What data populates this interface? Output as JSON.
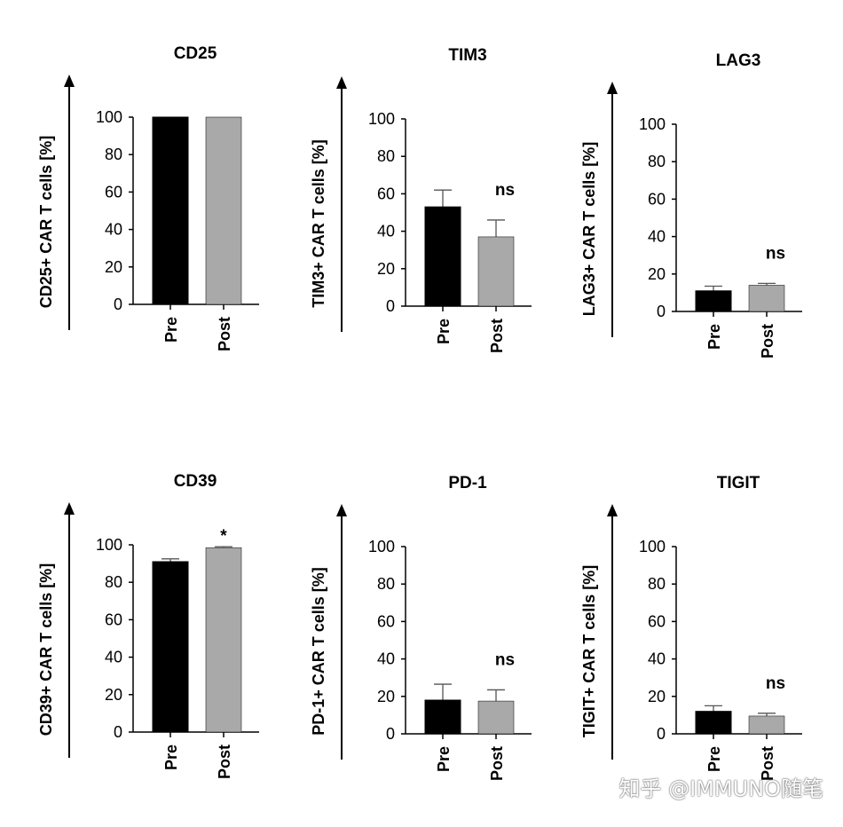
{
  "chart_data": [
    {
      "type": "bar",
      "title": "CD25",
      "ylabel": "CD25+ CAR T cells  [%]",
      "categories": [
        "Pre",
        "Post"
      ],
      "values": [
        100,
        100
      ],
      "error_upper": [
        100,
        100
      ],
      "significance": "",
      "ylim": [
        0,
        100
      ],
      "yticks": [
        0,
        20,
        40,
        60,
        80,
        100
      ],
      "colors": [
        "#000000",
        "#a9a9a9"
      ]
    },
    {
      "type": "bar",
      "title": "TIM3",
      "ylabel": "TIM3+ CAR T cells  [%]",
      "categories": [
        "Pre",
        "Post"
      ],
      "values": [
        53,
        37
      ],
      "error_upper": [
        62,
        46
      ],
      "significance": "ns",
      "ylim": [
        0,
        100
      ],
      "yticks": [
        0,
        20,
        40,
        60,
        80,
        100
      ],
      "colors": [
        "#000000",
        "#a9a9a9"
      ]
    },
    {
      "type": "bar",
      "title": "LAG3",
      "ylabel": "LAG3+ CAR T cells  [%]",
      "categories": [
        "Pre",
        "Post"
      ],
      "values": [
        11,
        14
      ],
      "error_upper": [
        13.5,
        15
      ],
      "significance": "ns",
      "ylim": [
        0,
        100
      ],
      "yticks": [
        0,
        20,
        40,
        60,
        80,
        100
      ],
      "colors": [
        "#000000",
        "#a9a9a9"
      ]
    },
    {
      "type": "bar",
      "title": "CD39",
      "ylabel": "CD39+ CAR T cells  [%]",
      "categories": [
        "Pre",
        "Post"
      ],
      "values": [
        91,
        98.5
      ],
      "error_upper": [
        92.5,
        99
      ],
      "significance": "*",
      "ylim": [
        0,
        100
      ],
      "yticks": [
        0,
        20,
        40,
        60,
        80,
        100
      ],
      "colors": [
        "#000000",
        "#a9a9a9"
      ]
    },
    {
      "type": "bar",
      "title": "PD-1",
      "ylabel": "PD-1+ CAR T cells  [%]",
      "categories": [
        "Pre",
        "Post"
      ],
      "values": [
        18,
        17.5
      ],
      "error_upper": [
        26.5,
        23.5
      ],
      "significance": "ns",
      "ylim": [
        0,
        100
      ],
      "yticks": [
        0,
        20,
        40,
        60,
        80,
        100
      ],
      "colors": [
        "#000000",
        "#a9a9a9"
      ]
    },
    {
      "type": "bar",
      "title": "TIGIT",
      "ylabel": "TIGIT+ CAR T cells  [%]",
      "categories": [
        "Pre",
        "Post"
      ],
      "values": [
        12,
        9.5
      ],
      "error_upper": [
        15,
        11
      ],
      "significance": "ns",
      "ylim": [
        0,
        100
      ],
      "yticks": [
        0,
        20,
        40,
        60,
        80,
        100
      ],
      "colors": [
        "#000000",
        "#a9a9a9"
      ]
    }
  ],
  "watermark": "知乎 @IMMUNO随笔"
}
